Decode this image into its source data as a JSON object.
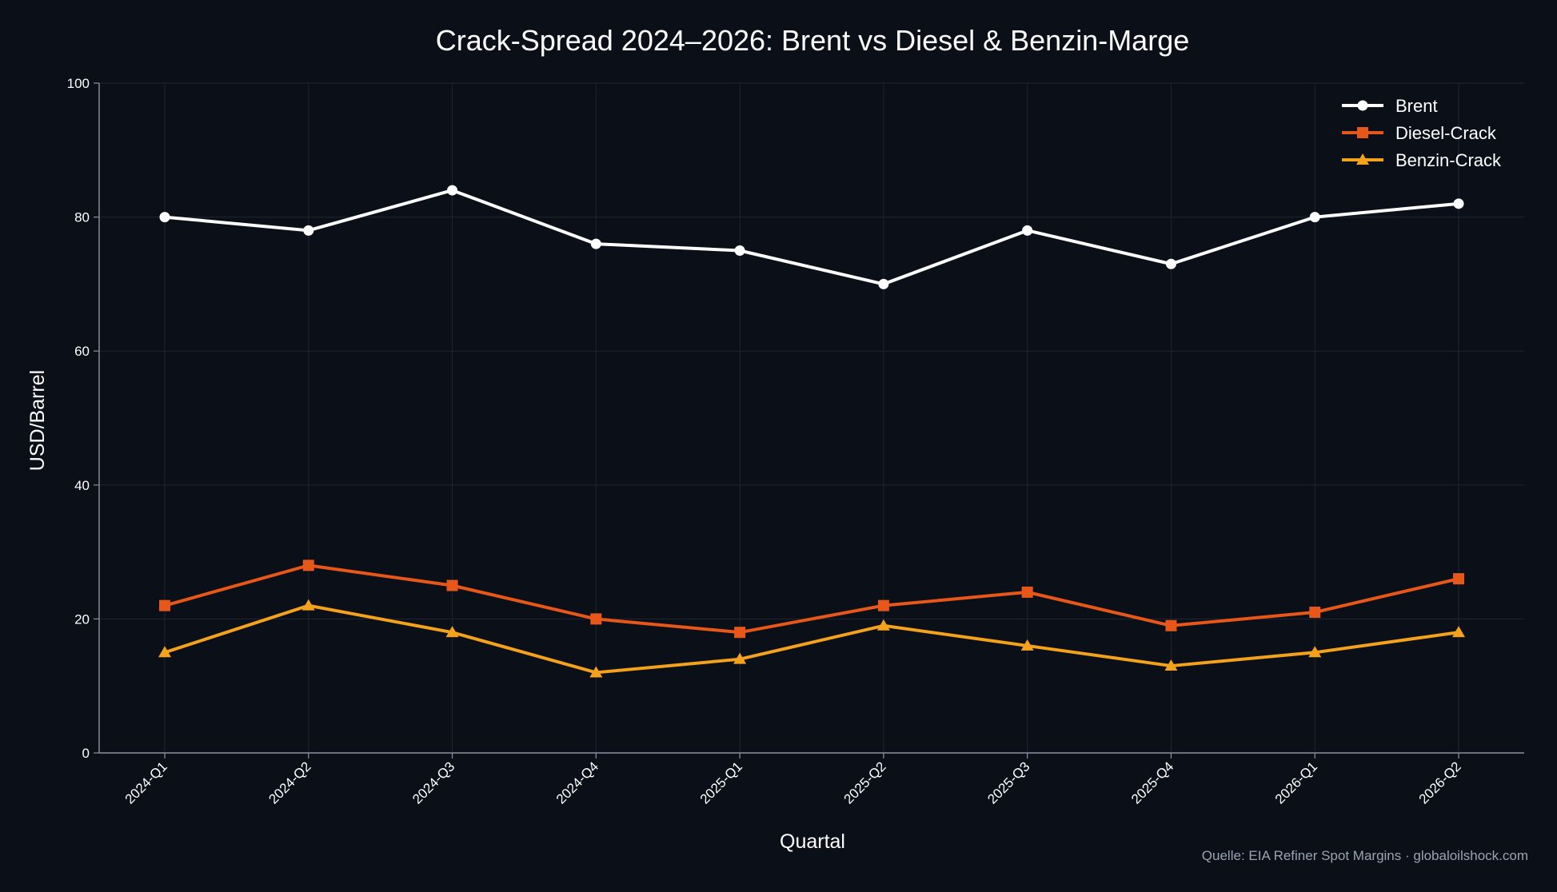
{
  "chart_data": {
    "type": "line",
    "title": "Crack-Spread 2024–2026: Brent vs Diesel & Benzin-Marge",
    "xlabel": "Quartal",
    "ylabel": "USD/Barrel",
    "ylim": [
      0,
      100
    ],
    "yticks": [
      0,
      20,
      40,
      60,
      80,
      100
    ],
    "grid": true,
    "legend_position": "top-right",
    "source": "Quelle: EIA Refiner Spot Margins · globaloilshock.com",
    "categories": [
      "2024-Q1",
      "2024-Q2",
      "2024-Q3",
      "2024-Q4",
      "2025-Q1",
      "2025-Q2",
      "2025-Q3",
      "2025-Q4",
      "2026-Q1",
      "2026-Q2"
    ],
    "series": [
      {
        "name": "Brent",
        "color": "#ffffff",
        "marker": "circle",
        "values": [
          80,
          78,
          84,
          76,
          75,
          70,
          78,
          73,
          80,
          82
        ]
      },
      {
        "name": "Diesel-Crack",
        "color": "#e8571a",
        "marker": "square",
        "values": [
          22,
          28,
          25,
          20,
          18,
          22,
          24,
          19,
          21,
          26
        ]
      },
      {
        "name": "Benzin-Crack",
        "color": "#f4a11c",
        "marker": "triangle",
        "values": [
          15,
          22,
          18,
          12,
          14,
          19,
          16,
          13,
          15,
          18
        ]
      }
    ]
  }
}
